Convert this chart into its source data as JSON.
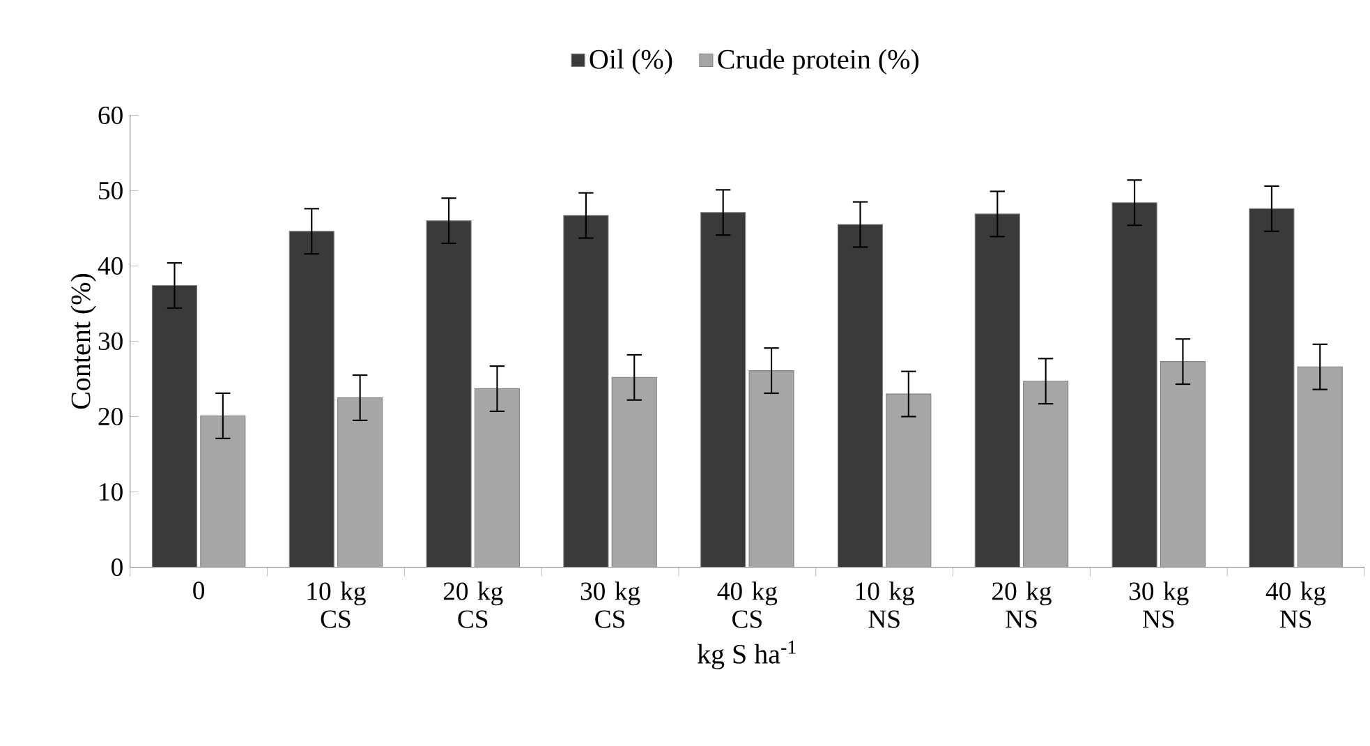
{
  "chart_data": {
    "type": "bar",
    "xlabel": "kg S ha$^{-1}$",
    "ylabel": "Content (%)",
    "categories": [
      "0",
      "10 kg CS",
      "20 kg CS",
      "30 kg CS",
      "40 kg CS",
      "10 kg NS",
      "20 kg NS",
      "30 kg NS",
      "40 kg NS"
    ],
    "series": [
      {
        "name": "Oil (%)",
        "color": "#3a3a3a",
        "values": [
          37.4,
          44.6,
          46.0,
          46.7,
          47.1,
          45.5,
          46.9,
          48.4,
          47.6
        ],
        "errors": [
          3,
          3,
          3,
          3,
          3,
          3,
          3,
          3,
          3
        ]
      },
      {
        "name": "Crude protein (%)",
        "color": "#a6a6a6",
        "values": [
          20.1,
          22.5,
          23.7,
          25.2,
          26.1,
          23.0,
          24.7,
          27.3,
          26.6
        ],
        "errors": [
          3,
          3,
          3,
          3,
          3,
          3,
          3,
          3,
          3
        ]
      }
    ],
    "ylim": [
      0,
      60
    ],
    "yticks": [
      0,
      10,
      20,
      30,
      40,
      50,
      60
    ],
    "legend": "top",
    "grid": false
  }
}
